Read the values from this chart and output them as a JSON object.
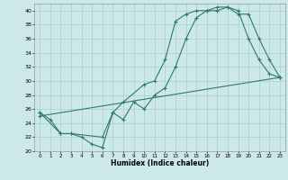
{
  "title": "",
  "xlabel": "Humidex (Indice chaleur)",
  "bg_color": "#cce8e8",
  "line_color": "#2d7b6e",
  "grid_color": "#aacfcf",
  "xlim": [
    -0.5,
    23.5
  ],
  "ylim": [
    20,
    41
  ],
  "yticks": [
    20,
    22,
    24,
    26,
    28,
    30,
    32,
    34,
    36,
    38,
    40
  ],
  "xticks": [
    0,
    1,
    2,
    3,
    4,
    5,
    6,
    7,
    8,
    9,
    10,
    11,
    12,
    13,
    14,
    15,
    16,
    17,
    18,
    19,
    20,
    21,
    22,
    23
  ],
  "line1_x": [
    0,
    1,
    2,
    3,
    4,
    5,
    6,
    7,
    8,
    10,
    11,
    12,
    13,
    14,
    15,
    16,
    17,
    18,
    19,
    20,
    21,
    22,
    23
  ],
  "line1_y": [
    25.5,
    24.5,
    22.5,
    22.5,
    22.0,
    21.0,
    20.5,
    25.5,
    27.0,
    29.5,
    30.0,
    33.0,
    38.5,
    39.5,
    40.0,
    40.0,
    40.5,
    40.5,
    40.0,
    36.0,
    33.0,
    31.0,
    30.5
  ],
  "line2_x": [
    0,
    2,
    3,
    6,
    7,
    8,
    9,
    10,
    11,
    12,
    13,
    14,
    15,
    16,
    17,
    18,
    19,
    20,
    21,
    22,
    23
  ],
  "line2_y": [
    25.5,
    22.5,
    22.5,
    22.0,
    25.5,
    24.5,
    27.0,
    26.0,
    28.0,
    29.0,
    32.0,
    36.0,
    39.0,
    40.0,
    40.0,
    40.5,
    39.5,
    39.5,
    36.0,
    33.0,
    30.5
  ],
  "line3_x": [
    0,
    23
  ],
  "line3_y": [
    25.0,
    30.5
  ]
}
